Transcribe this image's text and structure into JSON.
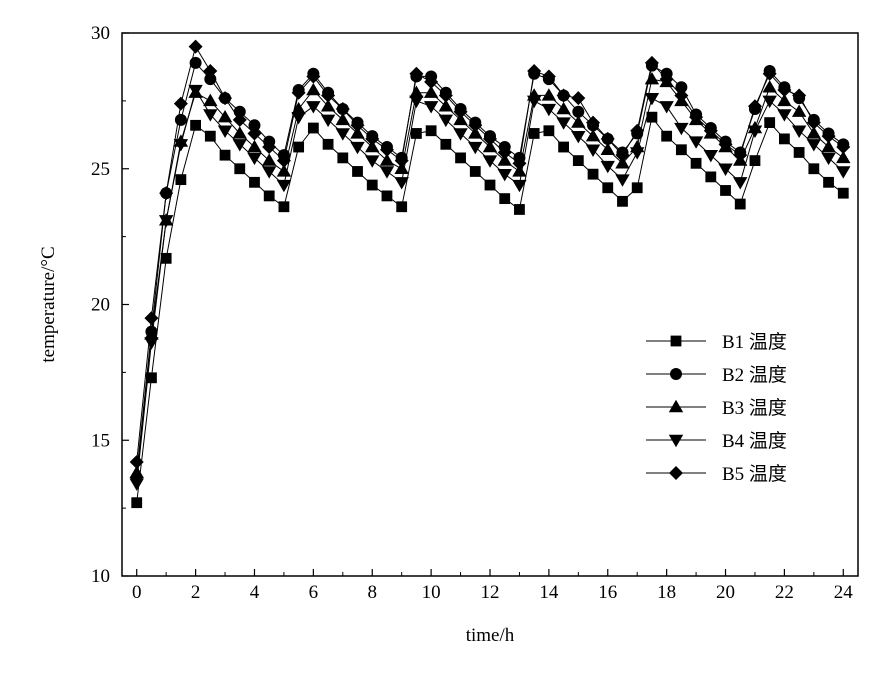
{
  "chart_data": {
    "type": "line",
    "xlabel": "time/h",
    "ylabel": "temperature/°C",
    "xlim": [
      -0.5,
      24.5
    ],
    "ylim": [
      10,
      30
    ],
    "x_ticks": [
      0,
      2,
      4,
      6,
      8,
      10,
      12,
      14,
      16,
      18,
      20,
      22,
      24
    ],
    "y_ticks": [
      10,
      15,
      20,
      25,
      30
    ],
    "legend_position": "right-middle",
    "grid": false,
    "x": [
      0,
      0.5,
      1,
      1.5,
      2,
      2.5,
      3,
      3.5,
      4,
      4.5,
      5,
      5.5,
      6,
      6.5,
      7,
      7.5,
      8,
      8.5,
      9,
      9.5,
      10,
      10.5,
      11,
      11.5,
      12,
      12.5,
      13,
      13.5,
      14,
      14.5,
      15,
      15.5,
      16,
      16.5,
      17,
      17.5,
      18,
      18.5,
      19,
      19.5,
      20,
      20.5,
      21,
      21.5,
      22,
      22.5,
      23,
      23.5,
      24
    ],
    "series": [
      {
        "name": "B1 温度",
        "marker": "square",
        "values": [
          12.7,
          17.3,
          21.7,
          24.6,
          26.6,
          26.2,
          25.5,
          25.0,
          24.5,
          24.0,
          23.6,
          25.8,
          26.5,
          25.9,
          25.4,
          24.9,
          24.4,
          24.0,
          23.6,
          26.3,
          26.4,
          25.9,
          25.4,
          24.9,
          24.4,
          23.9,
          23.5,
          26.3,
          26.4,
          25.8,
          25.3,
          24.8,
          24.3,
          23.8,
          24.3,
          26.9,
          26.2,
          25.7,
          25.2,
          24.7,
          24.2,
          23.7,
          25.3,
          26.7,
          26.1,
          25.6,
          25.0,
          24.5,
          24.1
        ]
      },
      {
        "name": "B2 温度",
        "marker": "circle",
        "values": [
          13.6,
          19.0,
          24.1,
          26.8,
          28.9,
          28.3,
          27.6,
          27.1,
          26.6,
          26.0,
          25.5,
          27.9,
          28.5,
          27.8,
          27.2,
          26.7,
          26.2,
          25.8,
          25.4,
          28.4,
          28.4,
          27.8,
          27.2,
          26.7,
          26.2,
          25.8,
          25.4,
          28.5,
          28.3,
          27.7,
          27.1,
          26.6,
          26.1,
          25.6,
          26.3,
          28.8,
          28.5,
          28.0,
          27.0,
          26.5,
          26.0,
          25.6,
          27.2,
          28.6,
          28.0,
          27.6,
          26.8,
          26.3,
          25.9
        ]
      },
      {
        "name": "B3 温度",
        "marker": "triangle-up",
        "values": [
          13.8,
          18.9,
          23.1,
          26.0,
          27.8,
          27.5,
          26.9,
          26.3,
          25.8,
          25.3,
          24.9,
          27.2,
          27.9,
          27.3,
          26.8,
          26.3,
          25.8,
          25.3,
          25.0,
          27.8,
          27.8,
          27.3,
          26.8,
          26.3,
          25.8,
          25.3,
          24.9,
          27.7,
          27.7,
          27.2,
          26.7,
          26.2,
          25.7,
          25.2,
          25.8,
          28.3,
          28.2,
          27.5,
          26.8,
          26.3,
          25.8,
          25.3,
          26.5,
          28.0,
          27.5,
          27.1,
          26.3,
          25.8,
          25.4
        ]
      },
      {
        "name": "B4 温度",
        "marker": "triangle-down",
        "values": [
          13.4,
          18.6,
          23.1,
          25.9,
          27.9,
          27.0,
          26.4,
          25.9,
          25.4,
          24.9,
          24.4,
          26.9,
          27.3,
          26.8,
          26.3,
          25.8,
          25.3,
          24.9,
          24.5,
          27.5,
          27.3,
          26.8,
          26.3,
          25.8,
          25.3,
          24.8,
          24.4,
          27.5,
          27.2,
          26.7,
          26.2,
          25.7,
          25.1,
          24.6,
          25.6,
          27.6,
          27.3,
          26.5,
          26.0,
          25.5,
          25.0,
          24.5,
          26.4,
          27.5,
          27.0,
          26.4,
          25.9,
          25.4,
          24.9
        ]
      },
      {
        "name": "B5 温度",
        "marker": "diamond",
        "values": [
          14.2,
          19.5,
          24.1,
          27.4,
          29.5,
          28.6,
          27.6,
          26.8,
          26.3,
          25.8,
          25.3,
          27.8,
          28.4,
          27.7,
          27.2,
          26.6,
          26.1,
          25.7,
          25.3,
          28.5,
          28.2,
          27.7,
          27.1,
          26.6,
          26.1,
          25.6,
          25.2,
          28.6,
          28.4,
          27.7,
          27.6,
          26.7,
          26.1,
          25.5,
          26.4,
          28.9,
          28.3,
          27.7,
          26.9,
          26.4,
          25.9,
          25.5,
          27.3,
          28.5,
          27.9,
          27.7,
          26.7,
          26.2,
          25.8
        ]
      }
    ]
  }
}
